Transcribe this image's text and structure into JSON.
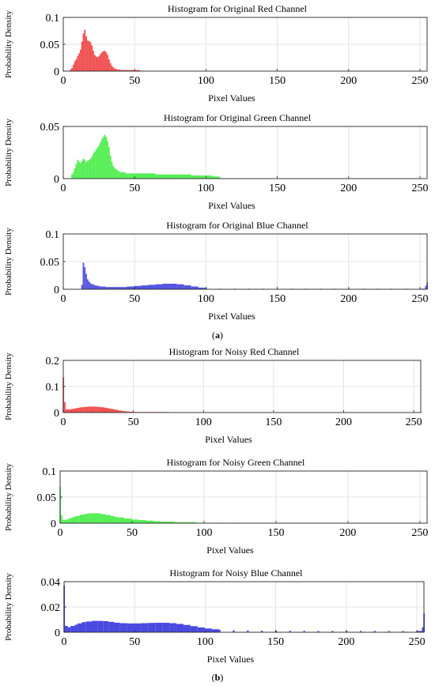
{
  "figure": {
    "panel_labels": [
      "a",
      "b"
    ]
  },
  "chart_data": [
    {
      "type": "bar",
      "title": "Histogram for Original Red Channel",
      "xlabel": "Pixel Values",
      "ylabel": "Probability Density",
      "xlim": [
        0,
        255
      ],
      "ylim": [
        0,
        0.1
      ],
      "xticks": [
        0,
        50,
        100,
        150,
        200,
        250
      ],
      "yticks": [
        0,
        0.05,
        0.1
      ],
      "ytick_labels": [
        "0",
        "0.05",
        "0.1"
      ],
      "grid": true,
      "color": "#f05050",
      "bins": [
        [
          5,
          0.003
        ],
        [
          6,
          0.006
        ],
        [
          7,
          0.012
        ],
        [
          8,
          0.018
        ],
        [
          9,
          0.022
        ],
        [
          10,
          0.028
        ],
        [
          11,
          0.033
        ],
        [
          12,
          0.04
        ],
        [
          13,
          0.055
        ],
        [
          14,
          0.07
        ],
        [
          15,
          0.077
        ],
        [
          16,
          0.065
        ],
        [
          17,
          0.057
        ],
        [
          18,
          0.056
        ],
        [
          19,
          0.054
        ],
        [
          20,
          0.048
        ],
        [
          21,
          0.038
        ],
        [
          22,
          0.03
        ],
        [
          23,
          0.027
        ],
        [
          24,
          0.026
        ],
        [
          25,
          0.028
        ],
        [
          26,
          0.032
        ],
        [
          27,
          0.035
        ],
        [
          28,
          0.037
        ],
        [
          29,
          0.038
        ],
        [
          30,
          0.035
        ],
        [
          31,
          0.03
        ],
        [
          32,
          0.022
        ],
        [
          33,
          0.015
        ],
        [
          34,
          0.01
        ],
        [
          35,
          0.007
        ],
        [
          36,
          0.005
        ],
        [
          37,
          0.004
        ],
        [
          38,
          0.003
        ],
        [
          39,
          0.003
        ],
        [
          40,
          0.002
        ],
        [
          42,
          0.002
        ],
        [
          44,
          0.002
        ],
        [
          46,
          0.002
        ],
        [
          48,
          0.002
        ],
        [
          50,
          0.002
        ],
        [
          52,
          0.002
        ],
        [
          54,
          0.001
        ]
      ]
    },
    {
      "type": "bar",
      "title": "Histogram for Original Green Channel",
      "xlabel": "Pixel Values",
      "ylabel": "Probability Density",
      "xlim": [
        0,
        255
      ],
      "ylim": [
        0,
        0.05
      ],
      "xticks": [
        0,
        50,
        100,
        150,
        200,
        250
      ],
      "yticks": [
        0,
        0.05
      ],
      "ytick_labels": [
        "0",
        "0.05"
      ],
      "grid": true,
      "color": "#55ee55",
      "bins": [
        [
          6,
          0.004
        ],
        [
          7,
          0.006
        ],
        [
          8,
          0.01
        ],
        [
          9,
          0.014
        ],
        [
          10,
          0.018
        ],
        [
          11,
          0.016
        ],
        [
          12,
          0.015
        ],
        [
          13,
          0.017
        ],
        [
          14,
          0.019
        ],
        [
          15,
          0.018
        ],
        [
          16,
          0.016
        ],
        [
          17,
          0.017
        ],
        [
          18,
          0.018
        ],
        [
          19,
          0.019
        ],
        [
          20,
          0.021
        ],
        [
          21,
          0.024
        ],
        [
          22,
          0.026
        ],
        [
          23,
          0.028
        ],
        [
          24,
          0.03
        ],
        [
          25,
          0.032
        ],
        [
          26,
          0.035
        ],
        [
          27,
          0.038
        ],
        [
          28,
          0.04
        ],
        [
          29,
          0.042
        ],
        [
          30,
          0.04
        ],
        [
          31,
          0.036
        ],
        [
          32,
          0.03
        ],
        [
          33,
          0.022
        ],
        [
          34,
          0.016
        ],
        [
          35,
          0.012
        ],
        [
          36,
          0.01
        ],
        [
          37,
          0.009
        ],
        [
          38,
          0.008
        ],
        [
          39,
          0.007
        ],
        [
          40,
          0.006
        ],
        [
          42,
          0.006
        ],
        [
          44,
          0.005
        ],
        [
          46,
          0.005
        ],
        [
          48,
          0.005
        ],
        [
          50,
          0.005
        ],
        [
          55,
          0.005
        ],
        [
          60,
          0.005
        ],
        [
          65,
          0.004
        ],
        [
          70,
          0.004
        ],
        [
          75,
          0.004
        ],
        [
          80,
          0.004
        ],
        [
          85,
          0.004
        ],
        [
          90,
          0.003
        ],
        [
          95,
          0.003
        ],
        [
          100,
          0.003
        ],
        [
          105,
          0.002
        ],
        [
          110,
          0.001
        ]
      ]
    },
    {
      "type": "bar",
      "title": "Histogram for Original Blue Channel",
      "xlabel": "Pixel Values",
      "ylabel": "Probability Density",
      "xlim": [
        0,
        255
      ],
      "ylim": [
        0,
        0.1
      ],
      "xticks": [
        0,
        50,
        100,
        150,
        200,
        250
      ],
      "yticks": [
        0,
        0.05,
        0.1
      ],
      "ytick_labels": [
        "0",
        "0.05",
        "0.1"
      ],
      "grid": true,
      "color": "#5555e0",
      "bins": [
        [
          13,
          0.008
        ],
        [
          14,
          0.048
        ],
        [
          15,
          0.04
        ],
        [
          16,
          0.028
        ],
        [
          17,
          0.018
        ],
        [
          18,
          0.014
        ],
        [
          19,
          0.011
        ],
        [
          20,
          0.009
        ],
        [
          22,
          0.007
        ],
        [
          24,
          0.006
        ],
        [
          26,
          0.005
        ],
        [
          28,
          0.005
        ],
        [
          30,
          0.004
        ],
        [
          35,
          0.004
        ],
        [
          40,
          0.004
        ],
        [
          45,
          0.005
        ],
        [
          50,
          0.006
        ],
        [
          55,
          0.007
        ],
        [
          60,
          0.008
        ],
        [
          65,
          0.009
        ],
        [
          70,
          0.01
        ],
        [
          75,
          0.01
        ],
        [
          80,
          0.009
        ],
        [
          85,
          0.007
        ],
        [
          90,
          0.005
        ],
        [
          95,
          0.003
        ],
        [
          100,
          0.002
        ],
        [
          110,
          0.001
        ],
        [
          120,
          0.001
        ],
        [
          130,
          0.001
        ],
        [
          140,
          0.001
        ],
        [
          150,
          0.001
        ],
        [
          160,
          0.001
        ],
        [
          170,
          0.001
        ],
        [
          180,
          0.001
        ],
        [
          190,
          0.001
        ],
        [
          200,
          0.001
        ],
        [
          210,
          0.001
        ],
        [
          220,
          0.001
        ],
        [
          230,
          0.001
        ],
        [
          240,
          0.001
        ],
        [
          250,
          0.001
        ],
        [
          254,
          0.006
        ],
        [
          255,
          0.012
        ]
      ]
    },
    {
      "type": "bar",
      "title": "Histogram for Noisy Red Channel",
      "xlabel": "Pixel Values",
      "ylabel": "Probability Density",
      "xlim": [
        0,
        255
      ],
      "ylim": [
        0,
        0.2
      ],
      "xticks": [
        0,
        50,
        100,
        150,
        200,
        250
      ],
      "yticks": [
        0,
        0.1,
        0.2
      ],
      "ytick_labels": [
        "0",
        "0.1",
        "0.2"
      ],
      "grid": true,
      "color": "#f05050",
      "bins": [
        [
          0,
          0.135
        ],
        [
          1,
          0.04
        ],
        [
          2,
          0.012
        ],
        [
          4,
          0.012
        ],
        [
          6,
          0.014
        ],
        [
          8,
          0.016
        ],
        [
          10,
          0.018
        ],
        [
          12,
          0.02
        ],
        [
          14,
          0.021
        ],
        [
          16,
          0.022
        ],
        [
          18,
          0.023
        ],
        [
          20,
          0.023
        ],
        [
          22,
          0.023
        ],
        [
          24,
          0.022
        ],
        [
          26,
          0.021
        ],
        [
          28,
          0.02
        ],
        [
          30,
          0.018
        ],
        [
          32,
          0.016
        ],
        [
          34,
          0.014
        ],
        [
          36,
          0.012
        ],
        [
          38,
          0.01
        ],
        [
          40,
          0.008
        ],
        [
          42,
          0.006
        ],
        [
          44,
          0.005
        ],
        [
          46,
          0.004
        ],
        [
          48,
          0.003
        ],
        [
          50,
          0.002
        ],
        [
          55,
          0.002
        ],
        [
          60,
          0.001
        ],
        [
          65,
          0.001
        ],
        [
          70,
          0.001
        ],
        [
          75,
          0.001
        ],
        [
          255,
          0.003
        ]
      ]
    },
    {
      "type": "bar",
      "title": "Histogram for Noisy Green Channel",
      "xlabel": "Pixel Values",
      "ylabel": "Probability Density",
      "xlim": [
        0,
        255
      ],
      "ylim": [
        0,
        0.1
      ],
      "xticks": [
        0,
        50,
        100,
        150,
        200,
        250
      ],
      "yticks": [
        0,
        0.05,
        0.1
      ],
      "ytick_labels": [
        "0",
        "0.05",
        "0.1"
      ],
      "grid": true,
      "color": "#55ee55",
      "bins": [
        [
          0,
          0.07
        ],
        [
          1,
          0.015
        ],
        [
          2,
          0.006
        ],
        [
          4,
          0.007
        ],
        [
          6,
          0.009
        ],
        [
          8,
          0.011
        ],
        [
          10,
          0.013
        ],
        [
          12,
          0.014
        ],
        [
          14,
          0.016
        ],
        [
          16,
          0.017
        ],
        [
          18,
          0.018
        ],
        [
          20,
          0.019
        ],
        [
          22,
          0.019
        ],
        [
          24,
          0.019
        ],
        [
          26,
          0.019
        ],
        [
          28,
          0.018
        ],
        [
          30,
          0.017
        ],
        [
          32,
          0.016
        ],
        [
          35,
          0.014
        ],
        [
          38,
          0.012
        ],
        [
          40,
          0.011
        ],
        [
          45,
          0.009
        ],
        [
          50,
          0.007
        ],
        [
          55,
          0.006
        ],
        [
          60,
          0.005
        ],
        [
          65,
          0.004
        ],
        [
          70,
          0.003
        ],
        [
          75,
          0.003
        ],
        [
          80,
          0.002
        ],
        [
          85,
          0.002
        ],
        [
          90,
          0.002
        ],
        [
          95,
          0.001
        ],
        [
          100,
          0.001
        ],
        [
          110,
          0.001
        ],
        [
          120,
          0.001
        ],
        [
          255,
          0.002
        ]
      ]
    },
    {
      "type": "bar",
      "title": "Histogram for Noisy Blue Channel",
      "xlabel": "Pixel Values",
      "ylabel": "Probability Density",
      "xlim": [
        0,
        255
      ],
      "ylim": [
        0,
        0.04
      ],
      "xticks": [
        0,
        50,
        100,
        150,
        200,
        250
      ],
      "yticks": [
        0,
        0.02,
        0.04
      ],
      "ytick_labels": [
        "0",
        "0.02",
        "0.04"
      ],
      "grid": true,
      "color": "#4a4ae0",
      "bins": [
        [
          0,
          0.037
        ],
        [
          1,
          0.005
        ],
        [
          3,
          0.004
        ],
        [
          5,
          0.005
        ],
        [
          8,
          0.006
        ],
        [
          10,
          0.007
        ],
        [
          13,
          0.008
        ],
        [
          16,
          0.0085
        ],
        [
          20,
          0.009
        ],
        [
          24,
          0.009
        ],
        [
          28,
          0.0088
        ],
        [
          32,
          0.0082
        ],
        [
          36,
          0.0076
        ],
        [
          40,
          0.0072
        ],
        [
          45,
          0.007
        ],
        [
          50,
          0.007
        ],
        [
          55,
          0.0072
        ],
        [
          60,
          0.0074
        ],
        [
          65,
          0.0075
        ],
        [
          70,
          0.0075
        ],
        [
          75,
          0.0072
        ],
        [
          80,
          0.0066
        ],
        [
          85,
          0.0058
        ],
        [
          90,
          0.0048
        ],
        [
          95,
          0.0038
        ],
        [
          100,
          0.003
        ],
        [
          105,
          0.0024
        ],
        [
          110,
          0.002
        ],
        [
          120,
          0.0016
        ],
        [
          130,
          0.0014
        ],
        [
          140,
          0.0012
        ],
        [
          150,
          0.0012
        ],
        [
          160,
          0.0011
        ],
        [
          170,
          0.0011
        ],
        [
          180,
          0.001
        ],
        [
          190,
          0.001
        ],
        [
          200,
          0.001
        ],
        [
          210,
          0.001
        ],
        [
          220,
          0.001
        ],
        [
          230,
          0.001
        ],
        [
          240,
          0.001
        ],
        [
          250,
          0.001
        ],
        [
          254,
          0.004
        ],
        [
          255,
          0.015
        ]
      ]
    }
  ]
}
